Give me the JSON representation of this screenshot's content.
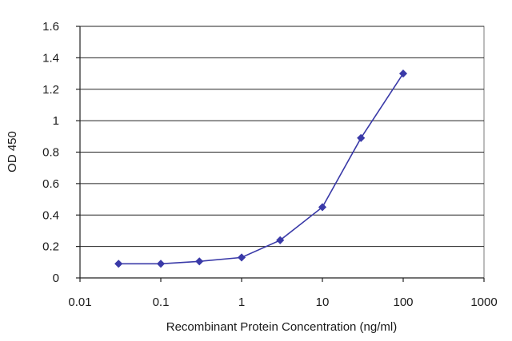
{
  "chart_data": {
    "type": "line",
    "xlabel": "Recombinant Protein Concentration (ng/ml)",
    "ylabel": "OD 450",
    "xscale": "log",
    "xlim": [
      0.01,
      1000
    ],
    "ylim": [
      0,
      1.6
    ],
    "xticks": [
      0.01,
      0.1,
      1,
      10,
      100,
      1000
    ],
    "xtick_labels": [
      "0.01",
      "0.1",
      "1",
      "10",
      "100",
      "1000"
    ],
    "yticks": [
      0,
      0.2,
      0.4,
      0.6,
      0.8,
      1,
      1.2,
      1.4,
      1.6
    ],
    "ytick_labels": [
      "0",
      "0.2",
      "0.4",
      "0.6",
      "0.8",
      "1",
      "1.2",
      "1.4",
      "1.6"
    ],
    "grid": "horizontal",
    "series": [
      {
        "color": "#3a3aa8",
        "x": [
          0.03,
          0.1,
          0.3,
          1,
          3,
          10,
          30,
          100
        ],
        "y": [
          0.09,
          0.09,
          0.105,
          0.13,
          0.24,
          0.45,
          0.89,
          1.3
        ]
      }
    ]
  }
}
